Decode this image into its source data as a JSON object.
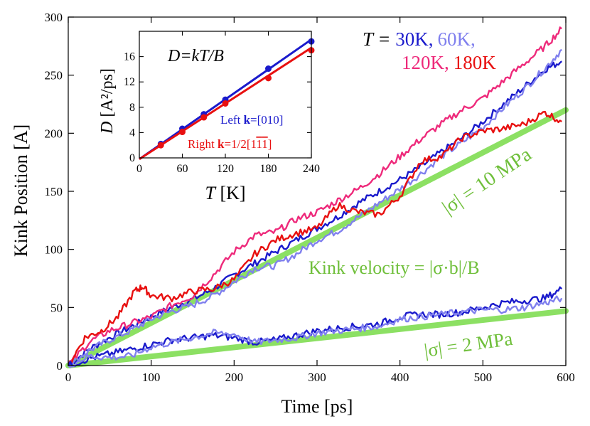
{
  "chart_data": [
    {
      "type": "line",
      "xlabel": "Time [ps]",
      "ylabel": "Kink Position [A]",
      "xlim": [
        0,
        600
      ],
      "ylim": [
        0,
        300
      ],
      "xticks": [
        0,
        100,
        200,
        300,
        400,
        500,
        600
      ],
      "yticks": [
        0,
        50,
        100,
        150,
        200,
        250,
        300
      ],
      "grid": false,
      "legend_text": {
        "prefix": "T = ",
        "entries": [
          {
            "label": "30K,",
            "color": "#1a1acc"
          },
          {
            "label": "60K,",
            "color": "#8080ee"
          },
          {
            "label": "120K,",
            "color": "#ee2a7b"
          },
          {
            "label": "180K",
            "color": "#e81010"
          }
        ]
      },
      "annotations": {
        "velocity_formula": "Kink velocity = |σ·b|/B",
        "stress_high": "|σ| = 10 MPa",
        "stress_low": "|σ| = 2 MPa"
      },
      "series": [
        {
          "stress": "10 MPa",
          "temperature": "30K",
          "color": "#1a1acc",
          "x": [
            0,
            25,
            50,
            75,
            100,
            125,
            150,
            175,
            200,
            225,
            250,
            275,
            300,
            325,
            350,
            375,
            400,
            425,
            450,
            475,
            500,
            525,
            550,
            575,
            595
          ],
          "y": [
            0,
            14,
            24,
            33,
            42,
            50,
            57,
            66,
            78,
            88,
            98,
            108,
            118,
            128,
            140,
            150,
            160,
            171,
            184,
            196,
            210,
            225,
            240,
            255,
            262
          ]
        },
        {
          "stress": "10 MPa",
          "temperature": "60K",
          "color": "#8080ee",
          "x": [
            0,
            25,
            50,
            75,
            100,
            125,
            150,
            175,
            200,
            225,
            250,
            275,
            300,
            325,
            350,
            375,
            400,
            425,
            450,
            475,
            500,
            525,
            550,
            575,
            595
          ],
          "y": [
            0,
            13,
            22,
            30,
            40,
            47,
            52,
            60,
            72,
            84,
            86,
            96,
            108,
            116,
            128,
            140,
            152,
            165,
            180,
            192,
            205,
            222,
            238,
            256,
            272
          ]
        },
        {
          "stress": "10 MPa",
          "temperature": "120K",
          "color": "#ee2a7b",
          "x": [
            0,
            25,
            50,
            75,
            100,
            125,
            150,
            175,
            200,
            225,
            250,
            275,
            300,
            325,
            350,
            375,
            400,
            425,
            450,
            475,
            500,
            525,
            550,
            575,
            595
          ],
          "y": [
            0,
            20,
            30,
            36,
            42,
            52,
            60,
            78,
            98,
            112,
            115,
            126,
            132,
            142,
            152,
            165,
            180,
            195,
            208,
            220,
            230,
            245,
            260,
            275,
            290
          ]
        },
        {
          "stress": "10 MPa",
          "temperature": "180K",
          "color": "#e81010",
          "x": [
            0,
            20,
            40,
            60,
            80,
            90,
            100,
            125,
            150,
            175,
            200,
            225,
            250,
            275,
            300,
            325,
            350,
            375,
            400,
            425,
            450,
            475,
            500,
            525,
            550,
            575,
            595
          ],
          "y": [
            0,
            24,
            30,
            42,
            64,
            68,
            60,
            58,
            64,
            66,
            74,
            96,
            108,
            114,
            118,
            138,
            132,
            130,
            146,
            176,
            180,
            196,
            202,
            204,
            208,
            218,
            210
          ]
        },
        {
          "stress": "2 MPa",
          "temperature": "30K",
          "color": "#1a1acc",
          "x": [
            0,
            25,
            50,
            75,
            100,
            125,
            150,
            175,
            200,
            225,
            250,
            275,
            300,
            325,
            350,
            375,
            400,
            425,
            450,
            475,
            500,
            525,
            550,
            575,
            595
          ],
          "y": [
            0,
            6,
            10,
            14,
            18,
            22,
            24,
            26,
            24,
            20,
            22,
            26,
            30,
            32,
            34,
            36,
            42,
            44,
            44,
            46,
            50,
            54,
            56,
            58,
            66
          ]
        },
        {
          "stress": "2 MPa",
          "temperature": "60K",
          "color": "#8080ee",
          "x": [
            0,
            25,
            50,
            75,
            100,
            125,
            150,
            175,
            200,
            225,
            250,
            275,
            300,
            325,
            350,
            375,
            400,
            425,
            450,
            475,
            500,
            525,
            550,
            575,
            595
          ],
          "y": [
            0,
            8,
            7,
            8,
            16,
            20,
            24,
            28,
            27,
            20,
            22,
            24,
            28,
            30,
            32,
            34,
            40,
            42,
            44,
            46,
            48,
            48,
            50,
            54,
            58
          ]
        },
        {
          "stress": "10 MPa",
          "temperature": "fit",
          "color": "#8ce063",
          "x": [
            0,
            600
          ],
          "y": [
            0,
            220
          ]
        },
        {
          "stress": "2 MPa",
          "temperature": "fit",
          "color": "#8ce063",
          "x": [
            0,
            600
          ],
          "y": [
            0,
            47
          ]
        }
      ]
    },
    {
      "type": "line",
      "inset": true,
      "title": "D=kT/B",
      "xlabel": "T [K]",
      "ylabel": "D [A²/ps]",
      "xlim": [
        0,
        240
      ],
      "ylim": [
        0,
        20
      ],
      "xticks": [
        0,
        60,
        120,
        180,
        240
      ],
      "yticks": [
        0,
        4,
        8,
        12,
        16
      ],
      "series": [
        {
          "name": "Left k=[010]",
          "color": "#1a1acc",
          "x": [
            30,
            60,
            90,
            120,
            180,
            240
          ],
          "y": [
            2.2,
            4.6,
            6.9,
            9.2,
            14.1,
            18.4
          ],
          "fit": {
            "x": [
              0,
              240
            ],
            "y": [
              -0.2,
              18.7
            ]
          }
        },
        {
          "name": "Right k=1/2[1-1-1]",
          "color": "#e81010",
          "x": [
            30,
            60,
            90,
            120,
            180,
            240
          ],
          "y": [
            2.0,
            4.1,
            6.4,
            8.6,
            12.6,
            17.0
          ],
          "fit": {
            "x": [
              0,
              240
            ],
            "y": [
              -0.2,
              17.4
            ]
          }
        }
      ]
    }
  ],
  "labels": {
    "main_x_title": "Time [ps]",
    "main_y_title": "Kink Position [A]",
    "inset_title": "D=kT/B",
    "inset_x_title_var": "T",
    "inset_x_title_unit": " [K]",
    "inset_y_title_var": "D",
    "inset_y_title_unit": " [A²/ps]",
    "inset_legend_left_prefix": "Left ",
    "inset_legend_left_k": "k",
    "inset_legend_left_val": "=[010]",
    "inset_legend_right_prefix": "Right ",
    "inset_legend_right_k": "k",
    "inset_legend_right_val": "=1/2[1",
    "inset_legend_right_bar1": "1",
    "inset_legend_right_bar2": "1",
    "inset_legend_right_end": "]"
  }
}
